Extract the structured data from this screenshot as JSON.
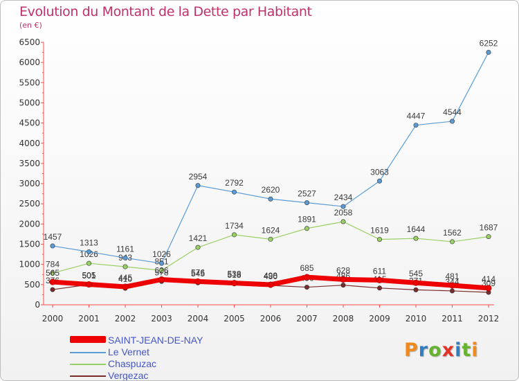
{
  "title": "Evolution du Montant de la Dette par Habitant",
  "subtitle": "(en €)",
  "logo": {
    "letters": [
      "P",
      "r",
      "o",
      "x",
      "i",
      "t",
      "i"
    ]
  },
  "chart_data": {
    "type": "line",
    "x": [
      "2000",
      "2001",
      "2002",
      "2003",
      "2004",
      "2005",
      "2006",
      "2007",
      "2008",
      "2009",
      "2010",
      "2011",
      "2012"
    ],
    "ylim": [
      0,
      6500
    ],
    "yticks": [
      "0",
      "500",
      "1000",
      "1500",
      "2000",
      "2500",
      "3000",
      "3500",
      "4000",
      "4500",
      "5000",
      "5500",
      "6000",
      "6500"
    ],
    "grid": false,
    "legend_position": "bottom-left",
    "series": [
      {
        "name": "Vergezac",
        "color": "#7a2b2b",
        "line_width": 1.2,
        "marker": true,
        "values": [
          376,
          501,
          410,
          578,
          545,
          518,
          480,
          436,
          486,
          415,
          371,
          344,
          309
        ],
        "labels": [
          "376",
          "501",
          "410",
          "578",
          "545",
          "518",
          "480",
          "436",
          "486",
          "415",
          "371",
          "344",
          "309"
        ]
      },
      {
        "name": "Chaspuzac",
        "color": "#99d066",
        "line_width": 1.2,
        "marker": true,
        "values": [
          784,
          1026,
          943,
          851,
          1421,
          1734,
          1624,
          1891,
          2058,
          1619,
          1644,
          1562,
          1687
        ],
        "labels": [
          "784",
          "1026",
          "943",
          "851",
          "1421",
          "1734",
          "1624",
          "1891",
          "2058",
          "1619",
          "1644",
          "1562",
          "1687"
        ]
      },
      {
        "name": "Le Vernet",
        "color": "#5a9bd5",
        "line_width": 1.2,
        "marker": true,
        "values": [
          1457,
          1313,
          1161,
          1026,
          2954,
          2792,
          2620,
          2527,
          2434,
          3063,
          4447,
          4544,
          6252
        ],
        "labels": [
          "1457",
          "1313",
          "1161",
          "1026",
          "2954",
          "2792",
          "2620",
          "2527",
          "2434",
          "3063",
          "4447",
          "4544",
          "6252"
        ]
      },
      {
        "name": "SAINT-JEAN-DE-NAY",
        "color": "#ee0000",
        "line_width": 7,
        "marker": true,
        "values": [
          565,
          505,
          445,
          626,
          576,
          538,
          498,
          685,
          628,
          611,
          545,
          481,
          414
        ],
        "labels": [
          "565",
          "505",
          "445",
          "626",
          "576",
          "538",
          "498",
          "685",
          "628",
          "611",
          "545",
          "481",
          "414"
        ]
      }
    ]
  },
  "legend": [
    {
      "name": "SAINT-JEAN-DE-NAY",
      "color": "#ee0000",
      "text_color": "#4455c8"
    },
    {
      "name": "Le Vernet",
      "color": "#5a9bd5",
      "text_color": "#4455c8"
    },
    {
      "name": "Chaspuzac",
      "color": "#99d066",
      "text_color": "#4455c8"
    },
    {
      "name": "Vergezac",
      "color": "#7a2b2b",
      "text_color": "#4455c8"
    }
  ]
}
